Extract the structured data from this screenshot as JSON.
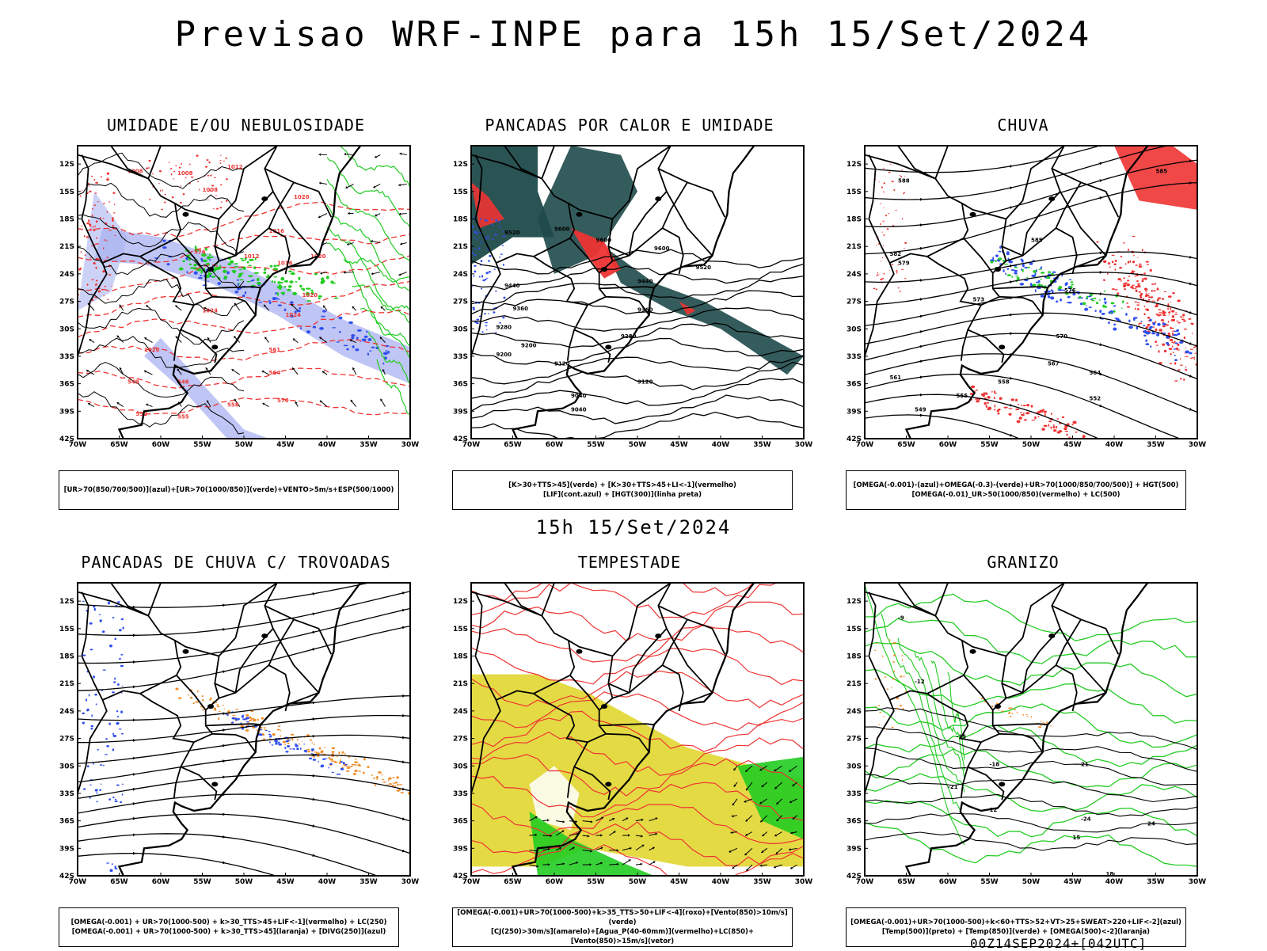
{
  "header": {
    "title": "Previsao WRF-INPE  para 15h 15/Set/2024"
  },
  "middle_title": "15h 15/Set/2024",
  "footer": "00Z14SEP2024+[042UTC]",
  "axes": {
    "lat_labels": [
      "12S",
      "15S",
      "18S",
      "21S",
      "24S",
      "27S",
      "30S",
      "33S",
      "36S",
      "39S",
      "42S"
    ],
    "lon_labels": [
      "70W",
      "65W",
      "60W",
      "55W",
      "50W",
      "45W",
      "40W",
      "35W",
      "30W"
    ]
  },
  "colors": {
    "blue": "#2f4ff0",
    "lightblue": "#aab2f0",
    "green": "#22cc22",
    "red": "#ee3333",
    "orange": "#f08a24",
    "yellow": "#e3d83a",
    "darkteal": "#1f4a4a",
    "black": "#000000"
  },
  "panels": [
    {
      "id": "umidade",
      "title": "UMIDADE E/OU NEBULOSIDADE",
      "legend": [
        "[UR>70(850/700/500)](azul)+[UR>70(1000/850)](verde)+VENTO>5m/s+ESP(500/1000)"
      ],
      "contour_labels": [
        "1008",
        "1008",
        "1008",
        "1012",
        "1016",
        "1020",
        "1020",
        "1016",
        "1012",
        "1020",
        "1024",
        "1024",
        "1020",
        "546",
        "549",
        "552",
        "555",
        "558",
        "561",
        "564",
        "570",
        "576"
      ]
    },
    {
      "id": "pancadas_calor",
      "title": "PANCADAS POR CALOR E UMIDADE",
      "legend": [
        "[K>30+TTS>45](verde) + [K>30+TTS>45+LI<-1](vermelho)",
        "[LIF](cont.azul) + [HGT(300)](linha preta)"
      ],
      "contour_labels": [
        "9520",
        "9600",
        "9600",
        "9600",
        "9520",
        "9440",
        "9440",
        "9360",
        "9360",
        "9280",
        "9280",
        "9200",
        "9200",
        "9120",
        "9120",
        "9040",
        "9040"
      ]
    },
    {
      "id": "chuva",
      "title": "CHUVA",
      "legend": [
        "[OMEGA(-0.001)-(azul)+OMEGA(-0.3)-(verde)+UR>70(1000/850/700/500)] + HGT(500)",
        "[OMEGA(-0.01)_UR>50(1000/850)(vermelho) + LC(500)"
      ],
      "contour_labels": [
        "585",
        "588",
        "585",
        "582",
        "579",
        "576",
        "573",
        "570",
        "567",
        "564",
        "561",
        "558",
        "555",
        "552",
        "549"
      ]
    },
    {
      "id": "pancadas_trovoadas",
      "title": "PANCADAS DE CHUVA C/ TROVOADAS",
      "legend": [
        "[OMEGA(-0.001) + UR>70(1000-500) + k>30_TTS>45+LIF<-1](vermelho) + LC(250)",
        "[OMEGA(-0.001) + UR>70(1000-500) + k>30_TTS>45](laranja) + [DIVG(250)](azul)"
      ]
    },
    {
      "id": "tempestade",
      "title": "TEMPESTADE",
      "legend": [
        "[OMEGA(-0.001)+UR>70(1000-500)+k>35_TTS>50+LIF<-4](roxo)+[Vento(850)>10m/s](verde)",
        "[CJ(250)>30m/s](amarelo)+[Agua_P(40-60mm)](vermelho)+LC(850)+[Vento(850)>15m/s](vetor)"
      ]
    },
    {
      "id": "granizo",
      "title": "GRANIZO",
      "legend": [
        "[OMEGA(-0.001)+UR>70(1000-500)+k<60+TTS>52+VT>25+SWEAT>220+LIF<-2](azul)",
        "[Temp(500)](preto) + [Temp(850)](verde) + [OMEGA(500)<-2](laranja)"
      ],
      "contour_labels": [
        "-9",
        "-12",
        "-15",
        "-18",
        "-21",
        "-24",
        "12",
        "15",
        "18",
        "21",
        "24"
      ]
    }
  ]
}
